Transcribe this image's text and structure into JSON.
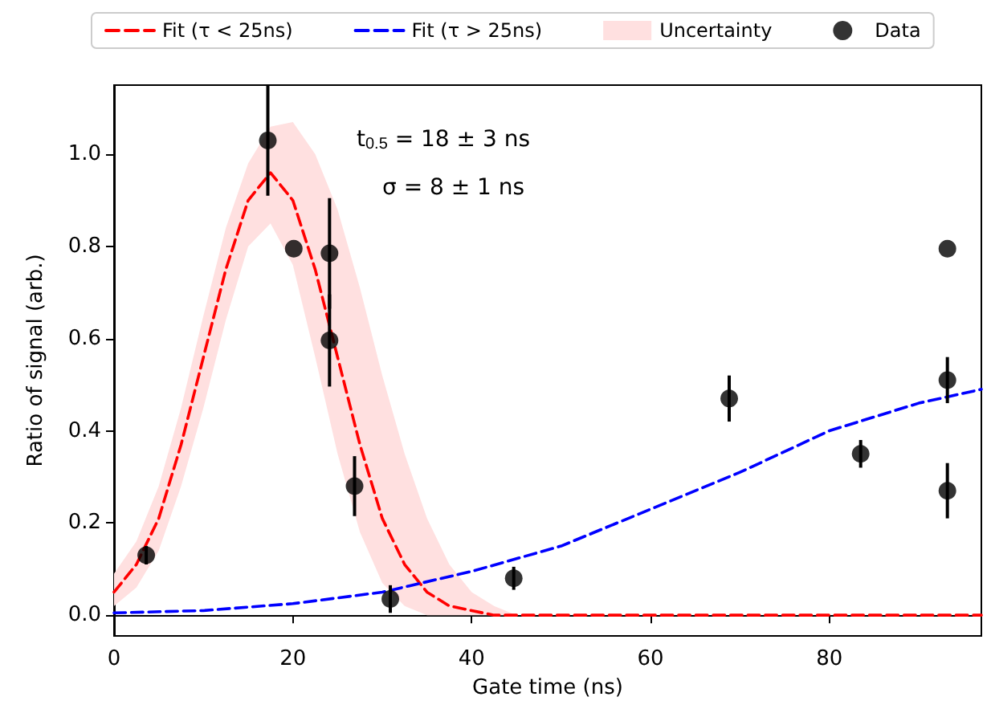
{
  "chart_data": {
    "type": "scatter",
    "xlabel": "Gate time (ns)",
    "ylabel": "Ratio of signal (arb.)",
    "annotations": [
      "t$_{0.5}$ = 18 ± 3 ns",
      "σ = 8 ± 1 ns"
    ],
    "xlim": [
      0,
      97
    ],
    "xticks": [
      0,
      20,
      40,
      60,
      80
    ],
    "ylim": [
      -0.045,
      1.15
    ],
    "yticks": [
      {
        "value": 0,
        "label": "0.0"
      },
      {
        "value": 0.2,
        "label": "0.2"
      },
      {
        "value": 0.4,
        "label": "0.4"
      },
      {
        "value": 0.6,
        "label": "0.6"
      },
      {
        "value": 0.8,
        "label": "0.8"
      },
      {
        "value": 1,
        "label": "1.0"
      }
    ],
    "legend": "top",
    "series": [
      {
        "name": "Fit (τ < 25ns)",
        "type": "line",
        "color": "#ff0000",
        "line_style": "dashed",
        "marker": "none",
        "x": [
          0,
          2.5,
          5,
          7.5,
          10,
          12.5,
          15,
          17.5,
          20,
          22.5,
          25,
          27.5,
          30,
          32.5,
          35,
          37.5,
          40,
          42.5,
          45,
          60,
          80,
          97
        ],
        "values": [
          0.05,
          0.11,
          0.21,
          0.37,
          0.56,
          0.75,
          0.9,
          0.96,
          0.9,
          0.75,
          0.56,
          0.37,
          0.21,
          0.11,
          0.05,
          0.02,
          0.01,
          0,
          0,
          0,
          0,
          0
        ],
        "lower": [
          0.02,
          0.06,
          0.14,
          0.28,
          0.45,
          0.64,
          0.8,
          0.85,
          0.76,
          0.56,
          0.35,
          0.18,
          0.07,
          0.02,
          0,
          0,
          0,
          0,
          0,
          null,
          null,
          null
        ],
        "upper": [
          0.09,
          0.16,
          0.28,
          0.45,
          0.65,
          0.84,
          0.98,
          1.06,
          1.07,
          1.0,
          0.88,
          0.71,
          0.52,
          0.35,
          0.21,
          0.11,
          0.05,
          0.02,
          0,
          null,
          null,
          null
        ]
      },
      {
        "name": "Fit (τ > 25ns)",
        "type": "line",
        "color": "#0000ff",
        "line_style": "dashed",
        "marker": "none",
        "x": [
          0,
          10,
          20,
          30,
          40,
          50,
          60,
          70,
          80,
          90,
          97
        ],
        "values": [
          0.005,
          0.01,
          0.025,
          0.05,
          0.095,
          0.15,
          0.23,
          0.31,
          0.4,
          0.46,
          0.49
        ]
      },
      {
        "name": "Uncertainty",
        "type": "area",
        "color": "#ffe0e0"
      },
      {
        "name": "Data",
        "color": "#000000",
        "marker": "circle",
        "x": [
          3.6,
          17.2,
          20.1,
          24.1,
          24.1,
          26.9,
          30.9,
          44.7,
          68.8,
          83.5,
          93.2,
          93.2,
          93.2
        ],
        "values": [
          0.13,
          1.03,
          0.795,
          0.785,
          0.596,
          0.28,
          0.035,
          0.08,
          0.47,
          0.35,
          0.795,
          0.51,
          0.27
        ],
        "errors": [
          0.02,
          0.12,
          null,
          0.12,
          0.1,
          0.065,
          0.03,
          0.025,
          0.05,
          0.03,
          null,
          0.05,
          0.06
        ]
      }
    ]
  }
}
